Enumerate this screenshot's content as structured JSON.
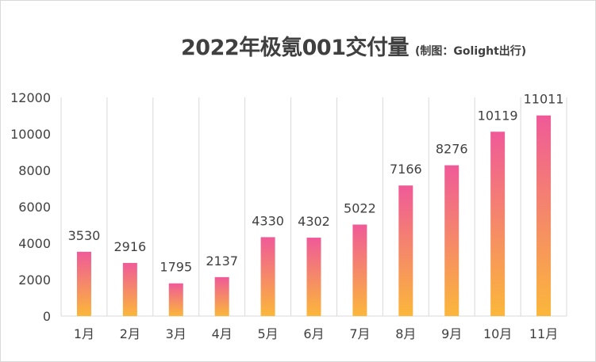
{
  "chart_data": {
    "type": "bar",
    "title": "2022年极氪001交付量",
    "subtitle": "(制图：Golight出行)",
    "xlabel": "",
    "ylabel": "",
    "categories": [
      "1月",
      "2月",
      "3月",
      "4月",
      "5月",
      "6月",
      "7月",
      "8月",
      "9月",
      "10月",
      "11月"
    ],
    "values": [
      3530,
      2916,
      1795,
      2137,
      4330,
      4302,
      5022,
      7166,
      8276,
      10119,
      11011
    ],
    "ylim": [
      0,
      12000
    ],
    "yticks": [
      0,
      2000,
      4000,
      6000,
      8000,
      10000,
      12000
    ],
    "grid": "vertical",
    "legend": "none",
    "data_labels": true,
    "colors": {
      "bar_top": "#ef5a98",
      "bar_bottom": "#fbb73a",
      "text": "#404040",
      "grid": "#d9d9d9"
    }
  }
}
